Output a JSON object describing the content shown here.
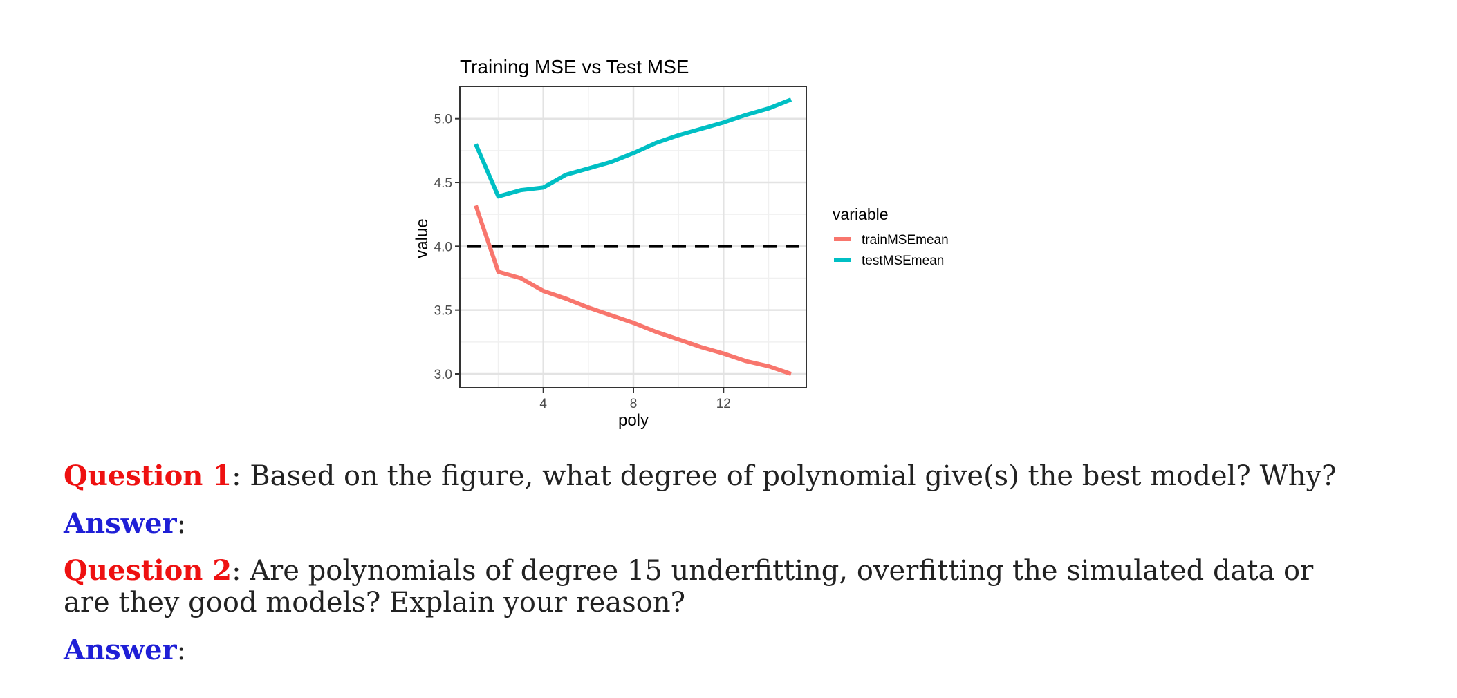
{
  "chart_data": {
    "type": "line",
    "title": "Training MSE vs Test MSE",
    "xlabel": "poly",
    "ylabel": "value",
    "xlim": [
      1,
      15
    ],
    "ylim": [
      3.0,
      5.15
    ],
    "x_ticks": [
      "4",
      "8",
      "12"
    ],
    "y_ticks": [
      "3.0",
      "3.5",
      "4.0",
      "4.5",
      "5.0"
    ],
    "grid": true,
    "legend": {
      "title": "variable",
      "position": "right"
    },
    "reference_line": {
      "y": 4.0,
      "style": "dashed",
      "color": "#000000"
    },
    "series": [
      {
        "name": "trainMSEmean",
        "color": "#f8766d",
        "x": [
          1,
          2,
          3,
          4,
          5,
          6,
          7,
          8,
          9,
          10,
          11,
          12,
          13,
          14,
          15
        ],
        "values": [
          4.32,
          3.8,
          3.75,
          3.65,
          3.59,
          3.52,
          3.46,
          3.4,
          3.33,
          3.27,
          3.21,
          3.16,
          3.1,
          3.06,
          3.0
        ]
      },
      {
        "name": "testMSEmean",
        "color": "#00bfc4",
        "x": [
          1,
          2,
          3,
          4,
          5,
          6,
          7,
          8,
          9,
          10,
          11,
          12,
          13,
          14,
          15
        ],
        "values": [
          4.8,
          4.39,
          4.44,
          4.46,
          4.56,
          4.61,
          4.66,
          4.73,
          4.81,
          4.87,
          4.92,
          4.97,
          5.03,
          5.08,
          5.15
        ]
      }
    ]
  },
  "questions": [
    {
      "label": "Question 1",
      "text": ": Based on the figure, what degree of polynomial give(s) the best model? Why?"
    },
    {
      "label": "Question 2",
      "text": ": Are polynomials of degree 15 underfitting, overfitting the simulated data or are they good models? Explain your reason?"
    }
  ],
  "answers": [
    {
      "label": "Answer",
      "text": ":"
    },
    {
      "label": "Answer",
      "text": ":"
    }
  ]
}
